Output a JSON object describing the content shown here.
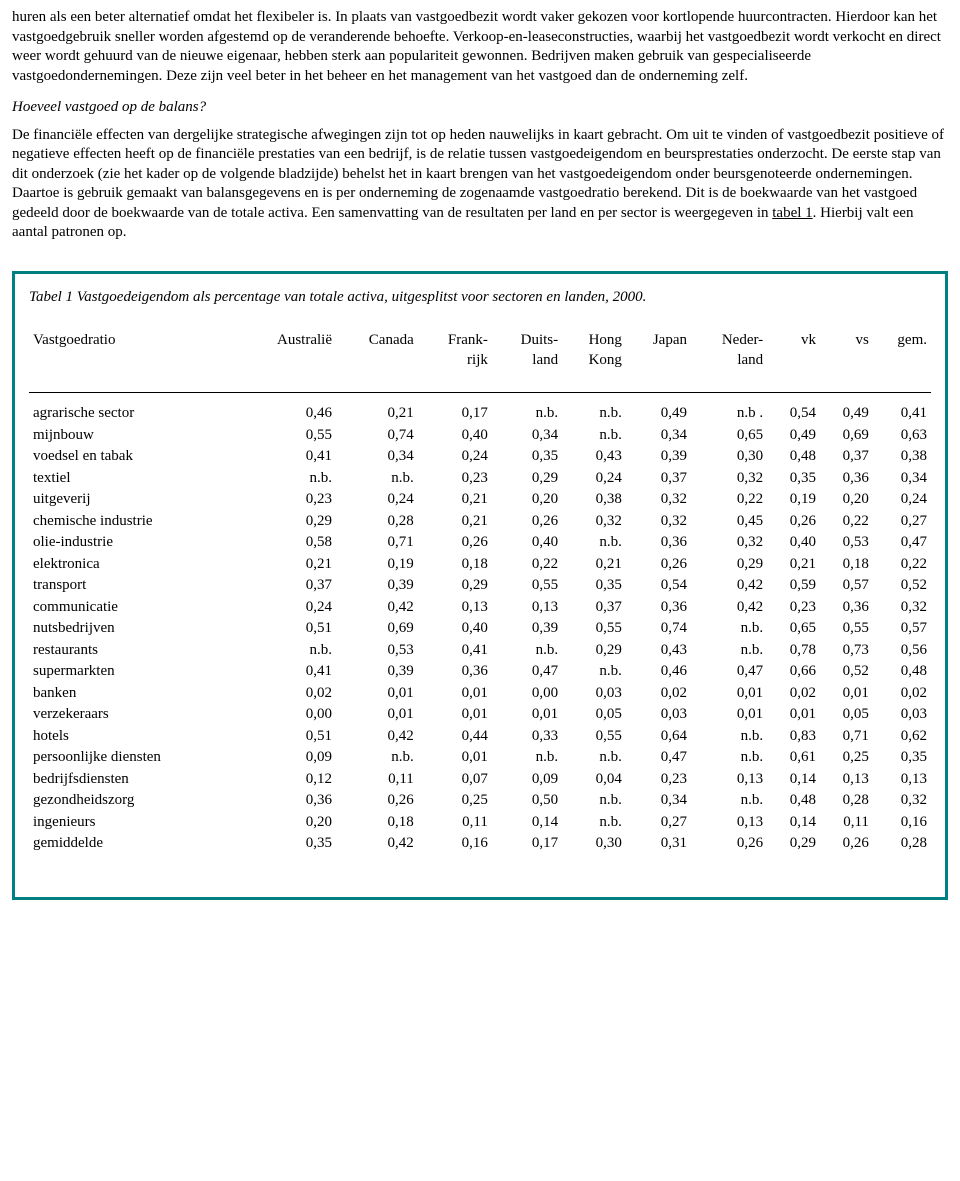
{
  "paragraphs": {
    "p1_a": "huren als een beter alternatief omdat het flexibeler is. In plaats van vastgoedbezit wordt vaker gekozen voor kortlopende huurcontracten. Hierdoor kan het vastgoedgebruik sneller worden afgestemd op de veranderende behoefte. Verkoop-en-leaseconstructies, waarbij het vastgoedbezit wordt verkocht en direct weer wordt gehuurd van de nieuwe eigenaar, hebben sterk aan populariteit gewonnen. Bedrijven maken gebruik van gespecialiseerde vastgoedondernemingen. Deze zijn veel beter in het beheer en het management van het vastgoed dan de onderneming zelf.",
    "heading": "Hoeveel vastgoed op de balans?",
    "p2_a": "De financiële effecten van dergelijke strategische afwegingen zijn tot op heden nauwelijks in kaart gebracht. Om uit te vinden of vastgoedbezit positieve of negatieve effecten heeft op de financiële prestaties van een bedrijf, is de relatie tussen vastgoedeigendom en beursprestaties onderzocht. De eerste stap van dit onderzoek (zie het kader op de volgende bladzijde) behelst het in kaart brengen van het vastgoedeigendom onder beursgenoteerde ondernemingen. Daartoe is gebruik gemaakt van balansgegevens en is per onderneming de zogenaamde vastgoedratio berekend. Dit is de boekwaarde van het vastgoed gedeeld door de boekwaarde van de totale activa. Een samenvatting van de resultaten per land en per sector is weergegeven in ",
    "p2_link": "tabel 1",
    "p2_b": ". Hierbij valt een aantal patronen op."
  },
  "table": {
    "caption": "Tabel 1 Vastgoedeigendom als percentage van totale activa, uitgesplitst voor sectoren en landen, 2000.",
    "headers": {
      "c0": "Vastgoedratio",
      "c1": "Australië",
      "c2": "Canada",
      "c3": "Frank-\nrijk",
      "c4": "Duits-\nland",
      "c5": "Hong\nKong",
      "c6": "Japan",
      "c7": "Neder-\nland",
      "c8": "vk",
      "c9": "vs",
      "c10": "gem."
    },
    "rows": [
      {
        "label": "agrarische sector",
        "v": [
          "0,46",
          "0,21",
          "0,17",
          "n.b.",
          "n.b.",
          "0,49",
          "n.b .",
          "0,54",
          "0,49",
          "0,41"
        ]
      },
      {
        "label": "mijnbouw",
        "v": [
          "0,55",
          "0,74",
          "0,40",
          "0,34",
          "n.b.",
          "0,34",
          "0,65",
          "0,49",
          "0,69",
          "0,63"
        ]
      },
      {
        "label": "voedsel en tabak",
        "v": [
          "0,41",
          "0,34",
          "0,24",
          "0,35",
          "0,43",
          "0,39",
          "0,30",
          "0,48",
          "0,37",
          "0,38"
        ]
      },
      {
        "label": "textiel",
        "v": [
          "n.b.",
          "n.b.",
          "0,23",
          "0,29",
          "0,24",
          "0,37",
          "0,32",
          "0,35",
          "0,36",
          "0,34"
        ]
      },
      {
        "label": "uitgeverij",
        "v": [
          "0,23",
          "0,24",
          "0,21",
          "0,20",
          "0,38",
          "0,32",
          "0,22",
          "0,19",
          "0,20",
          "0,24"
        ]
      },
      {
        "label": "chemische industrie",
        "v": [
          "0,29",
          "0,28",
          "0,21",
          "0,26",
          "0,32",
          "0,32",
          "0,45",
          "0,26",
          "0,22",
          "0,27"
        ]
      },
      {
        "label": "olie-industrie",
        "v": [
          "0,58",
          "0,71",
          "0,26",
          "0,40",
          "n.b.",
          "0,36",
          "0,32",
          "0,40",
          "0,53",
          "0,47"
        ]
      },
      {
        "label": "elektronica",
        "v": [
          "0,21",
          "0,19",
          "0,18",
          "0,22",
          "0,21",
          "0,26",
          "0,29",
          "0,21",
          "0,18",
          "0,22"
        ]
      },
      {
        "label": "transport",
        "v": [
          "0,37",
          "0,39",
          "0,29",
          "0,55",
          "0,35",
          "0,54",
          "0,42",
          "0,59",
          "0,57",
          "0,52"
        ]
      },
      {
        "label": "communicatie",
        "v": [
          "0,24",
          "0,42",
          "0,13",
          "0,13",
          "0,37",
          "0,36",
          "0,42",
          "0,23",
          "0,36",
          "0,32"
        ]
      },
      {
        "label": "nutsbedrijven",
        "v": [
          "0,51",
          "0,69",
          "0,40",
          "0,39",
          "0,55",
          "0,74",
          "n.b.",
          "0,65",
          "0,55",
          "0,57"
        ]
      },
      {
        "label": "restaurants",
        "v": [
          "n.b.",
          "0,53",
          "0,41",
          "n.b.",
          "0,29",
          "0,43",
          "n.b.",
          "0,78",
          "0,73",
          "0,56"
        ]
      },
      {
        "label": "supermarkten",
        "v": [
          "0,41",
          "0,39",
          "0,36",
          "0,47",
          "n.b.",
          "0,46",
          "0,47",
          "0,66",
          "0,52",
          "0,48"
        ]
      },
      {
        "label": "banken",
        "v": [
          "0,02",
          "0,01",
          "0,01",
          "0,00",
          "0,03",
          "0,02",
          "0,01",
          "0,02",
          "0,01",
          "0,02"
        ]
      },
      {
        "label": "verzekeraars",
        "v": [
          "0,00",
          "0,01",
          "0,01",
          "0,01",
          "0,05",
          "0,03",
          "0,01",
          "0,01",
          "0,05",
          "0,03"
        ]
      },
      {
        "label": "hotels",
        "v": [
          "0,51",
          "0,42",
          "0,44",
          "0,33",
          "0,55",
          "0,64",
          "n.b.",
          "0,83",
          "0,71",
          "0,62"
        ]
      },
      {
        "label": "persoonlijke diensten",
        "v": [
          "0,09",
          "n.b.",
          "0,01",
          "n.b.",
          "n.b.",
          "0,47",
          "n.b.",
          "0,61",
          "0,25",
          "0,35"
        ]
      },
      {
        "label": "bedrijfsdiensten",
        "v": [
          "0,12",
          "0,11",
          "0,07",
          "0,09",
          "0,04",
          "0,23",
          "0,13",
          "0,14",
          "0,13",
          "0,13"
        ]
      },
      {
        "label": "gezondheidszorg",
        "v": [
          "0,36",
          "0,26",
          "0,25",
          "0,50",
          "n.b.",
          "0,34",
          "n.b.",
          "0,48",
          "0,28",
          "0,32"
        ]
      },
      {
        "label": "ingenieurs",
        "v": [
          "0,20",
          "0,18",
          "0,11",
          "0,14",
          "n.b.",
          "0,27",
          "0,13",
          "0,14",
          "0,11",
          "0,16"
        ]
      },
      {
        "label": "gemiddelde",
        "v": [
          "0,35",
          "0,42",
          "0,16",
          "0,17",
          "0,30",
          "0,31",
          "0,26",
          "0,29",
          "0,26",
          "0,28"
        ]
      }
    ]
  }
}
